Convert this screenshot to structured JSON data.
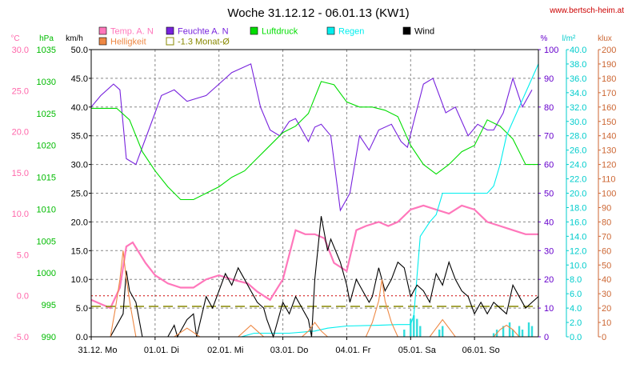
{
  "chart_data": {
    "type": "line",
    "title": "Woche 31.12.12 - 06.01.13 (KW1)",
    "source": "www.bertsch-heim.at",
    "x_tick_labels": [
      "31.12. Mo",
      "01.01. Di",
      "02.01. Mi",
      "03.01. Do",
      "04.01. Fr",
      "05.01. Sa",
      "06.01. So"
    ],
    "x_range": [
      0,
      7
    ],
    "axes": [
      {
        "key": "temp",
        "unit": "°C",
        "color": "#ff66aa",
        "min": -5,
        "max": 30,
        "step": 5,
        "decimals": 1
      },
      {
        "key": "hpa",
        "unit": "hPa",
        "color": "#00bb00",
        "min": 990,
        "max": 1035,
        "step": 5,
        "decimals": 0
      },
      {
        "key": "kmh",
        "unit": "km/h",
        "color": "#000000",
        "min": 0,
        "max": 50,
        "step": 5,
        "decimals": 1
      },
      {
        "key": "pct",
        "unit": "%",
        "color": "#6600cc",
        "min": 0,
        "max": 100,
        "step": 10,
        "decimals": 0
      },
      {
        "key": "lm2",
        "unit": "l/m²",
        "color": "#00cccc",
        "min": 0,
        "max": 40,
        "step": 2,
        "decimals": 1
      },
      {
        "key": "klux",
        "unit": "klux",
        "color": "#cc6633",
        "min": 0,
        "max": 200,
        "step": 10,
        "decimals": 0
      }
    ],
    "legend": [
      {
        "label": "Temp. A. N",
        "color": "#ff77bb",
        "style": "box"
      },
      {
        "label": "Helligkeit",
        "color": "#ee8844",
        "style": "box"
      },
      {
        "label": "Feuchte A. N",
        "color": "#7722dd",
        "style": "box"
      },
      {
        "label": "-1.3 Monat-Ø",
        "color": "#888800",
        "style": "outline"
      },
      {
        "label": "Luftdruck",
        "color": "#00dd00",
        "style": "box"
      },
      {
        "label": "Regen",
        "color": "#00eeee",
        "style": "box"
      },
      {
        "label": "Wind",
        "color": "#000000",
        "style": "box"
      }
    ],
    "series": [
      {
        "name": "Feuchte A. N",
        "axis": "pct",
        "color": "#7722dd",
        "x": [
          0,
          0.15,
          0.35,
          0.45,
          0.55,
          0.7,
          0.9,
          1.1,
          1.3,
          1.5,
          1.8,
          2.0,
          2.2,
          2.5,
          2.65,
          2.8,
          2.95,
          3.1,
          3.2,
          3.4,
          3.5,
          3.6,
          3.75,
          3.9,
          4.05,
          4.2,
          4.35,
          4.5,
          4.7,
          4.85,
          4.95,
          5.05,
          5.2,
          5.35,
          5.55,
          5.7,
          5.9,
          6.05,
          6.2,
          6.3,
          6.45,
          6.6,
          6.75,
          6.9
        ],
        "y": [
          80,
          84,
          88,
          86,
          62,
          60,
          72,
          84,
          86,
          82,
          84,
          88,
          92,
          95,
          80,
          72,
          70,
          75,
          76,
          68,
          73,
          74,
          70,
          44,
          50,
          70,
          65,
          72,
          74,
          68,
          66,
          75,
          88,
          90,
          78,
          80,
          70,
          74,
          72,
          72,
          78,
          90,
          80,
          86
        ]
      },
      {
        "name": "Luftdruck",
        "axis": "hpa",
        "color": "#00dd00",
        "x": [
          0,
          0.4,
          0.6,
          0.8,
          1.0,
          1.2,
          1.4,
          1.6,
          1.8,
          2.0,
          2.2,
          2.4,
          2.6,
          2.8,
          3.0,
          3.2,
          3.4,
          3.6,
          3.8,
          4.0,
          4.2,
          4.4,
          4.6,
          4.8,
          5.0,
          5.2,
          5.4,
          5.6,
          5.8,
          6.0,
          6.2,
          6.4,
          6.6,
          6.8,
          7.0
        ],
        "y": [
          1025.8,
          1025.8,
          1024,
          1019,
          1016,
          1013.5,
          1011.5,
          1011.5,
          1012.5,
          1013.5,
          1015,
          1016,
          1018,
          1020,
          1022,
          1023,
          1025,
          1030,
          1029.5,
          1026.8,
          1026,
          1026,
          1025.5,
          1024.5,
          1020,
          1017,
          1015.5,
          1017,
          1019,
          1020,
          1024,
          1023,
          1021,
          1017,
          1017
        ]
      },
      {
        "name": "Temp. A. N",
        "axis": "temp",
        "color": "#ff77bb",
        "x": [
          0,
          0.15,
          0.3,
          0.45,
          0.55,
          0.65,
          0.85,
          1.0,
          1.2,
          1.4,
          1.6,
          1.8,
          2.0,
          2.2,
          2.45,
          2.6,
          2.8,
          3.0,
          3.2,
          3.35,
          3.5,
          3.65,
          3.8,
          4.0,
          4.15,
          4.3,
          4.5,
          4.65,
          4.8,
          5.0,
          5.2,
          5.4,
          5.6,
          5.8,
          6.0,
          6.2,
          6.4,
          6.6,
          6.8,
          7.0
        ],
        "y": [
          -0.5,
          -1,
          -1.5,
          1,
          6,
          6.5,
          4,
          2.5,
          1.5,
          1,
          1,
          2,
          2.5,
          2,
          1.5,
          0.5,
          -0.5,
          2,
          8,
          7.5,
          7.5,
          7,
          4,
          3,
          8,
          8.5,
          9,
          8.5,
          9,
          10.5,
          11,
          10.5,
          10,
          11,
          10.5,
          9,
          8.5,
          8,
          7.5,
          7.5
        ]
      },
      {
        "name": "-1.3 Monat-Ø",
        "axis": "temp",
        "color": "#888800",
        "dash": true,
        "x": [
          0,
          7
        ],
        "y": [
          -1.3,
          -1.3
        ]
      },
      {
        "name": "Regen",
        "axis": "lm2",
        "color": "#00eeee",
        "x": [
          0,
          2.35,
          2.55,
          3.1,
          3.5,
          3.7,
          4.0,
          4.5,
          4.8,
          5.0,
          5.05,
          5.15,
          5.3,
          5.4,
          5.5,
          5.6,
          5.8,
          6.0,
          6.2,
          6.3,
          6.4,
          6.5,
          6.7,
          6.9,
          7.0
        ],
        "y": [
          0,
          0,
          0.5,
          0.5,
          0.8,
          1.2,
          1.5,
          1.6,
          1.7,
          1.7,
          3,
          14,
          16,
          17,
          20,
          20,
          20,
          20,
          20,
          21,
          24,
          28,
          32,
          36,
          38
        ]
      },
      {
        "name": "Wind",
        "axis": "kmh",
        "color": "#000000",
        "x": [
          0,
          0.3,
          0.4,
          0.5,
          0.55,
          0.6,
          0.7,
          0.8,
          1.2,
          1.3,
          1.35,
          1.5,
          1.6,
          1.65,
          1.8,
          1.9,
          2.0,
          2.1,
          2.2,
          2.3,
          2.4,
          2.5,
          2.6,
          2.7,
          2.75,
          2.85,
          3.0,
          3.1,
          3.2,
          3.3,
          3.4,
          3.45,
          3.5,
          3.6,
          3.7,
          3.75,
          3.9,
          4.0,
          4.05,
          4.15,
          4.25,
          4.35,
          4.4,
          4.5,
          4.6,
          4.7,
          4.8,
          4.9,
          5.0,
          5.1,
          5.2,
          5.3,
          5.4,
          5.5,
          5.6,
          5.7,
          5.8,
          5.9,
          6.0,
          6.1,
          6.2,
          6.3,
          6.4,
          6.5,
          6.6,
          6.7,
          6.8,
          6.9,
          7.0
        ],
        "y": [
          0,
          0,
          2,
          4,
          11.5,
          8,
          6,
          0,
          0,
          2,
          0,
          3,
          4,
          0,
          7,
          5,
          8,
          11,
          9,
          12,
          10,
          8,
          6,
          5,
          3,
          0,
          6,
          4,
          7,
          5,
          3,
          0,
          10,
          21,
          15,
          17,
          13,
          9,
          6,
          10,
          8,
          6,
          7,
          12,
          8,
          10,
          13,
          12,
          7,
          9,
          8,
          6,
          11,
          9,
          13,
          10,
          8,
          7,
          4,
          6,
          4,
          6,
          5,
          4,
          9,
          7,
          5,
          6,
          7
        ]
      },
      {
        "name": "Helligkeit",
        "axis": "klux",
        "color": "#ee8844",
        "x": [
          0.3,
          0.38,
          0.45,
          0.5,
          0.55,
          0.62,
          0.7,
          1.3,
          1.4,
          1.5,
          1.6,
          1.7,
          2.3,
          2.4,
          2.5,
          2.6,
          2.7,
          3.3,
          3.4,
          3.5,
          3.6,
          3.7,
          4.3,
          4.4,
          4.5,
          4.55,
          4.6,
          4.7,
          4.8,
          5.3,
          5.4,
          5.5,
          5.6,
          5.7,
          6.3,
          6.4,
          6.5,
          6.6,
          6.7
        ],
        "y": [
          0,
          20,
          40,
          60,
          40,
          20,
          0,
          0,
          3,
          6,
          3,
          0,
          0,
          4,
          8,
          4,
          0,
          0,
          4,
          10,
          4,
          0,
          0,
          10,
          25,
          40,
          25,
          10,
          0,
          0,
          6,
          12,
          6,
          0,
          0,
          5,
          8,
          5,
          0
        ]
      }
    ],
    "rain_bars": {
      "axis": "lm2",
      "x": [
        4.9,
        5.0,
        5.05,
        5.1,
        5.15,
        5.45,
        5.5,
        6.3,
        6.35,
        6.45,
        6.55,
        6.6,
        6.7,
        6.75,
        6.85,
        6.9
      ],
      "y": [
        1,
        2.5,
        3,
        2.5,
        1.5,
        1,
        1.5,
        0.5,
        1,
        1.5,
        2,
        1,
        1.5,
        1,
        2,
        1.5
      ]
    }
  }
}
